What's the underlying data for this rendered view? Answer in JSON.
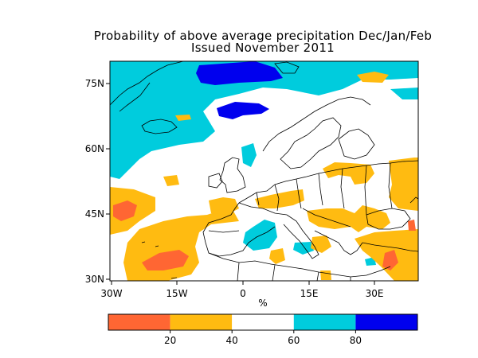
{
  "title": "Probability of above average precipitation Dec/Jan/Feb",
  "subtitle": "Issued November 2011",
  "map": {
    "x_ticks": [
      "30W",
      "15W",
      "0",
      "15E",
      "30E"
    ],
    "y_ticks": [
      "75N",
      "60N",
      "45N",
      "30N"
    ],
    "x_unit_label": "%"
  },
  "colorbar": {
    "bins": [
      {
        "from": 0,
        "to": 20,
        "color": "#ff6633"
      },
      {
        "from": 20,
        "to": 40,
        "color": "#ffbb11"
      },
      {
        "from": 40,
        "to": 60,
        "color": "#ffffff"
      },
      {
        "from": 60,
        "to": 80,
        "color": "#00ccdd"
      },
      {
        "from": 80,
        "to": 100,
        "color": "#0000ee"
      }
    ],
    "tick_labels": [
      "20",
      "40",
      "60",
      "80"
    ]
  },
  "colors": {
    "very_low": "#ff6633",
    "low": "#ffbb11",
    "high": "#00ccdd",
    "very_high": "#0000ee",
    "coastline": "#000000"
  }
}
